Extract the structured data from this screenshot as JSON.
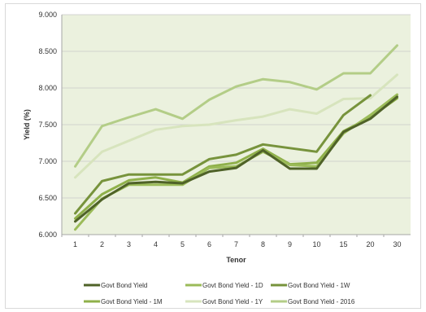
{
  "chart_data": {
    "type": "line",
    "xlabel": "Tenor",
    "ylabel": "Yield (%)",
    "categories": [
      "1",
      "2",
      "3",
      "4",
      "5",
      "6",
      "7",
      "8",
      "9",
      "10",
      "15",
      "20",
      "30"
    ],
    "ylim": [
      6.0,
      9.0
    ],
    "yticks": [
      "6.000",
      "6.500",
      "7.000",
      "7.500",
      "8.000",
      "8.500",
      "9.000"
    ],
    "grid": true,
    "legend_position": "bottom",
    "plot_background": "#ebf1de",
    "series": [
      {
        "name": "Govt Bond Yield",
        "color": "#4f6228",
        "values": [
          6.18,
          6.48,
          6.7,
          6.72,
          6.7,
          6.86,
          6.91,
          7.15,
          6.9,
          6.9,
          7.4,
          7.58,
          7.88
        ]
      },
      {
        "name": "Govt Bond Yield - 1D",
        "color": "#9bbb59",
        "values": [
          6.07,
          6.49,
          6.68,
          6.68,
          6.68,
          6.91,
          6.93,
          7.13,
          6.95,
          6.93,
          7.38,
          7.63,
          7.91
        ]
      },
      {
        "name": "Govt Bond Yield - 1W",
        "color": "#77933c",
        "values": [
          6.29,
          6.73,
          6.82,
          6.82,
          6.82,
          7.03,
          7.09,
          7.23,
          7.18,
          7.13,
          7.63,
          7.9,
          null
        ]
      },
      {
        "name": "Govt Bond Yield - 1M",
        "color": "#8fb04a",
        "values": [
          6.22,
          6.55,
          6.74,
          6.78,
          6.71,
          6.93,
          6.98,
          7.17,
          6.96,
          6.98,
          7.41,
          7.6,
          7.86
        ]
      },
      {
        "name": "Govt Bond Yield - 1Y",
        "color": "#d7e4bd",
        "values": [
          6.78,
          7.13,
          7.28,
          7.43,
          7.48,
          7.5,
          7.56,
          7.61,
          7.71,
          7.65,
          7.85,
          7.86,
          8.18
        ]
      },
      {
        "name": "Govt Bond Yield - 2016",
        "color": "#b3cd87",
        "values": [
          6.93,
          7.48,
          7.6,
          7.71,
          7.58,
          7.84,
          8.02,
          8.12,
          8.08,
          7.98,
          8.2,
          8.2,
          8.58
        ]
      }
    ]
  }
}
